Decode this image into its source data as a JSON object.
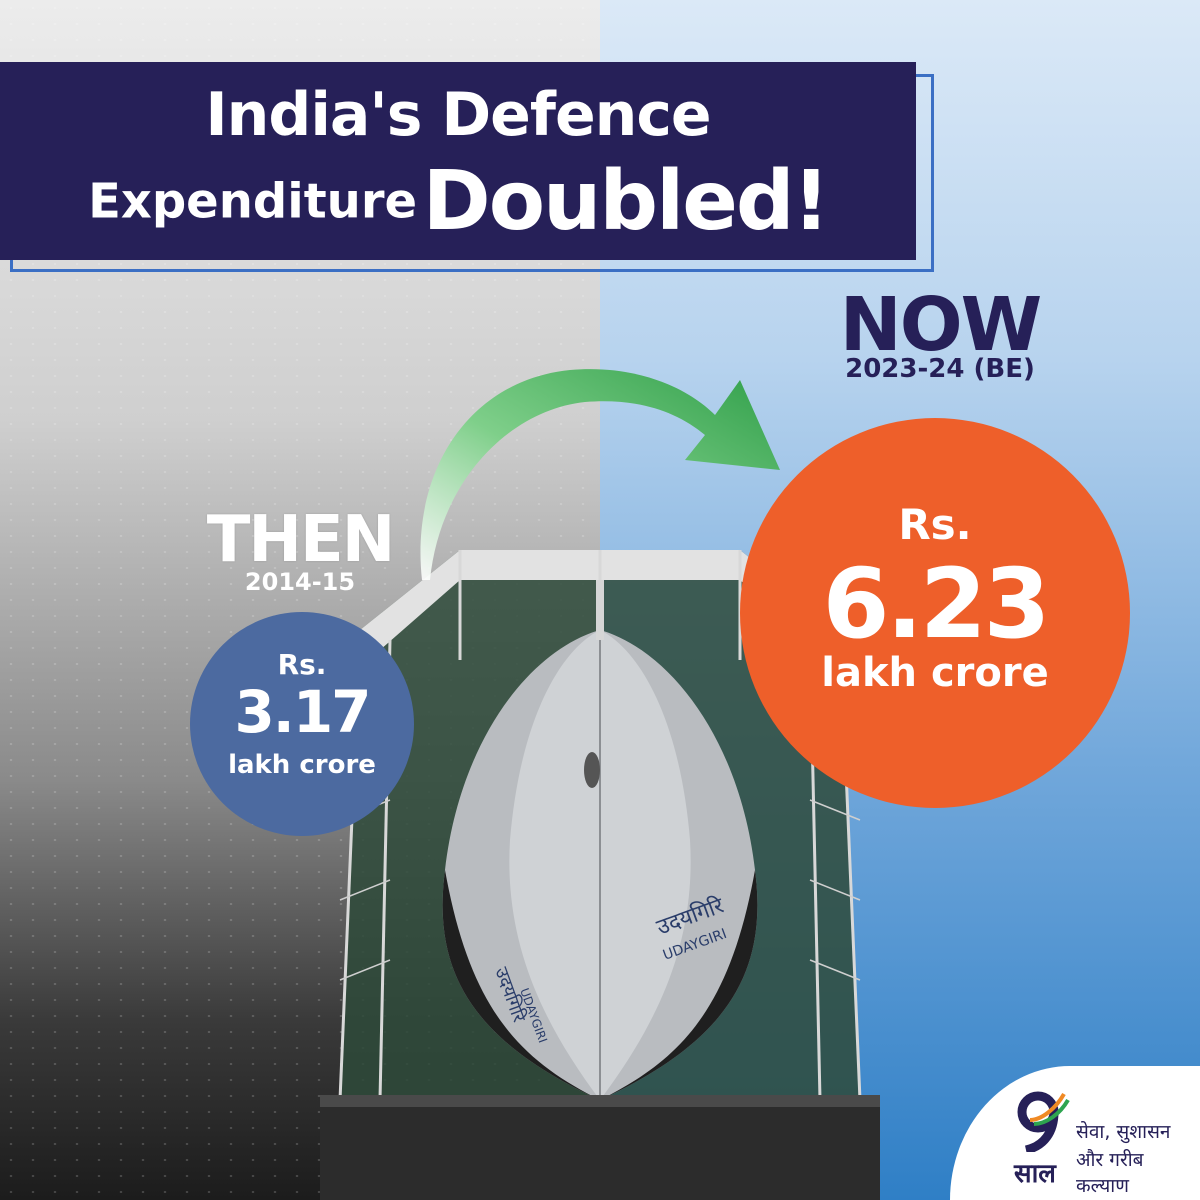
{
  "title": {
    "line1": "India's Defence",
    "line2_prefix": "Expenditure",
    "line2_emphasis": "Doubled!"
  },
  "then": {
    "label": "THEN",
    "year": "2014-15",
    "currency": "Rs.",
    "value": "3.17",
    "unit": "lakh crore"
  },
  "now": {
    "label": "NOW",
    "year": "2023-24 (BE)",
    "currency": "Rs.",
    "value": "6.23",
    "unit": "lakh crore"
  },
  "ship": {
    "name_hindi": "उदयगिरि",
    "name_english": "UDAYGIRI"
  },
  "logo": {
    "saal": "साल",
    "tagline_line1": "सेवा, सुशासन",
    "tagline_line2": "और गरीब कल्याण"
  },
  "colors": {
    "title_bg": "#262058",
    "then_circle": "#4c6aa0",
    "now_circle": "#ee5f2a",
    "arrow": "#3fae54",
    "logo_saffron": "#f08a24",
    "logo_green": "#2ea44f",
    "logo_navy": "#262058"
  }
}
